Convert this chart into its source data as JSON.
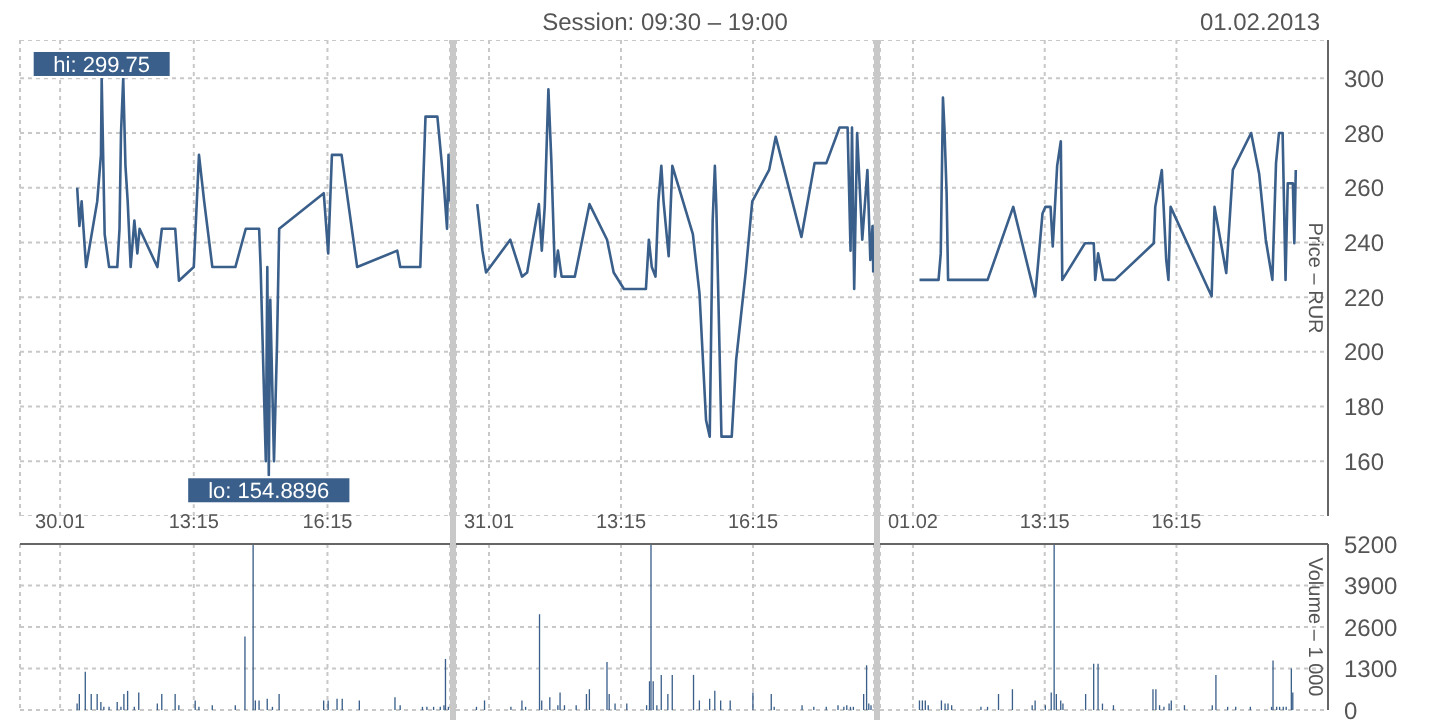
{
  "chart_data": [
    {
      "type": "line",
      "color": "#3a5f8a",
      "grid": true,
      "tick_labels": false,
      "annotations": [
        {
          "text": "hi: 299.75",
          "x": "2013-01-30T11:11",
          "y": 299.75
        },
        {
          "text": "lo: 154.8896",
          "x": "2013-01-30T14:56",
          "y": 154.8896
        }
      ],
      "x": [
        "2013-01-30T10:38",
        "2013-01-30T10:41",
        "2013-01-30T10:44",
        "2013-01-30T10:50",
        "2013-01-30T11:05",
        "2013-01-30T11:10",
        "2013-01-30T11:11",
        "2013-01-30T11:15",
        "2013-01-30T11:21",
        "2013-01-30T11:32",
        "2013-01-30T11:35",
        "2013-01-30T11:37",
        "2013-01-30T11:40",
        "2013-01-30T11:43",
        "2013-01-30T11:46",
        "2013-01-30T11:50",
        "2013-01-30T11:55",
        "2013-01-30T11:59",
        "2013-01-30T12:02",
        "2013-01-30T12:26",
        "2013-01-30T12:32",
        "2013-01-30T12:50",
        "2013-01-30T12:55",
        "2013-01-30T13:15",
        "2013-01-30T13:22",
        "2013-01-30T13:29",
        "2013-01-30T13:40",
        "2013-01-30T14:11",
        "2013-01-30T14:25",
        "2013-01-30T14:43",
        "2013-01-30T14:45",
        "2013-01-30T14:52",
        "2013-01-30T14:54",
        "2013-01-30T14:56",
        "2013-01-30T14:58",
        "2013-01-30T15:03",
        "2013-01-30T15:07",
        "2013-01-30T15:10",
        "2013-01-30T16:10",
        "2013-01-30T16:16",
        "2013-01-30T16:21",
        "2013-01-30T16:34",
        "2013-01-30T16:55",
        "2013-01-30T17:49",
        "2013-01-30T17:53",
        "2013-01-30T18:20",
        "2013-01-30T18:27",
        "2013-01-30T18:43",
        "2013-01-30T18:52",
        "2013-01-30T18:56",
        "2013-01-30T18:58",
        "2013-01-30T18:59"
      ],
      "values": [
        260,
        246,
        255,
        231,
        255,
        272,
        299.75,
        243,
        231,
        231,
        245,
        280,
        300,
        268,
        255,
        231,
        248,
        236,
        245,
        231,
        245,
        245,
        226,
        231,
        272,
        255,
        231,
        231,
        245,
        245,
        231,
        160,
        231,
        154.8896,
        219,
        160,
        202,
        245,
        258,
        236,
        272,
        272,
        231,
        237,
        231,
        231,
        286,
        286,
        260,
        245,
        272,
        255
      ],
      "xlim": [
        "2013-01-30T09:21",
        "2013-01-30T19:00"
      ],
      "xticks": [
        {
          "value": "2013-01-30T10:15",
          "label": null
        },
        {
          "value": "2013-01-30T13:15",
          "label": null
        },
        {
          "value": "2013-01-30T16:15",
          "label": null
        }
      ],
      "ylim": [
        140,
        314
      ],
      "yticks": [
        160,
        180,
        200,
        220,
        240,
        260,
        280,
        300
      ]
    },
    {
      "type": "line",
      "title": "Session: 09:30 – 19:00",
      "color": "#3a5f8a",
      "grid": true,
      "tick_labels": false,
      "x": [
        "2013-01-31T09:59",
        "2013-01-31T10:06",
        "2013-01-31T10:11",
        "2013-01-31T10:44",
        "2013-01-31T11:00",
        "2013-01-31T11:07",
        "2013-01-31T11:23",
        "2013-01-31T11:27",
        "2013-01-31T11:31",
        "2013-01-31T11:36",
        "2013-01-31T11:40",
        "2013-01-31T11:45",
        "2013-01-31T11:49",
        "2013-01-31T11:54",
        "2013-01-31T12:12",
        "2013-01-31T12:32",
        "2013-01-31T12:56",
        "2013-01-31T13:05",
        "2013-01-31T13:19",
        "2013-01-31T13:49",
        "2013-01-31T13:53",
        "2013-01-31T13:57",
        "2013-01-31T14:02",
        "2013-01-31T14:06",
        "2013-01-31T14:10",
        "2013-01-31T14:13",
        "2013-01-31T14:20",
        "2013-01-31T14:25",
        "2013-01-31T14:53",
        "2013-01-31T15:02",
        "2013-01-31T15:11",
        "2013-01-31T15:16",
        "2013-01-31T15:20",
        "2013-01-31T15:23",
        "2013-01-31T15:25",
        "2013-01-31T15:32",
        "2013-01-31T15:46",
        "2013-01-31T15:52",
        "2013-01-31T16:05",
        "2013-01-31T16:14",
        "2013-01-31T16:37",
        "2013-01-31T16:46",
        "2013-01-31T17:21",
        "2013-01-31T17:39",
        "2013-01-31T17:55",
        "2013-01-31T18:13",
        "2013-01-31T18:24",
        "2013-01-31T18:28",
        "2013-01-31T18:30",
        "2013-01-31T18:33",
        "2013-01-31T18:37",
        "2013-01-31T18:44",
        "2013-01-31T18:51",
        "2013-01-31T18:55",
        "2013-01-31T18:58",
        "2013-01-31T18:59"
      ],
      "values": [
        254,
        237,
        229,
        241,
        227.5,
        229,
        254,
        237,
        253,
        296,
        270,
        227.5,
        237,
        227.5,
        227.5,
        254,
        241,
        229,
        223,
        223,
        241,
        231,
        227.5,
        255,
        268,
        255,
        235,
        268,
        243,
        221.5,
        175,
        169,
        248,
        268,
        253,
        169,
        169,
        197,
        229,
        255,
        266.5,
        278.6,
        242,
        269,
        269,
        282,
        282,
        237,
        282,
        223,
        280,
        241,
        266.5,
        233.6,
        246,
        229
      ],
      "xlim": [
        "2013-01-31T09:30",
        "2013-01-31T19:00"
      ],
      "xticks": [
        {
          "value": "2013-01-31T10:15",
          "label": null
        },
        {
          "value": "2013-01-31T13:15",
          "label": null
        },
        {
          "value": "2013-01-31T16:15",
          "label": null
        }
      ],
      "ylim": [
        140,
        314
      ],
      "yticks": [
        160,
        180,
        200,
        220,
        240,
        260,
        280,
        300
      ]
    },
    {
      "type": "line",
      "ylabel": "Price – RUR",
      "color": "#3a5f8a",
      "grid": true,
      "tick_labels": "y",
      "annotations": [
        "01.02.2013"
      ],
      "x": [
        "2013-02-01T10:24",
        "2013-02-01T10:50",
        "2013-02-01T10:53",
        "2013-02-01T10:56",
        "2013-02-01T10:58",
        "2013-02-01T11:01",
        "2013-02-01T11:03",
        "2013-02-01T11:57",
        "2013-02-01T12:32",
        "2013-02-01T13:02",
        "2013-02-01T13:12",
        "2013-02-01T13:16",
        "2013-02-01T13:23",
        "2013-02-01T13:26",
        "2013-02-01T13:32",
        "2013-02-01T13:37",
        "2013-02-01T13:39",
        "2013-02-01T14:10",
        "2013-02-01T14:22",
        "2013-02-01T14:24",
        "2013-02-01T14:28",
        "2013-02-01T14:35",
        "2013-02-01T14:51",
        "2013-02-01T15:44",
        "2013-02-01T15:46",
        "2013-02-01T15:55",
        "2013-02-01T16:01",
        "2013-02-01T16:04",
        "2013-02-01T16:07",
        "2013-02-01T17:03",
        "2013-02-01T17:07",
        "2013-02-01T17:23",
        "2013-02-01T17:32",
        "2013-02-01T17:57",
        "2013-02-01T18:08",
        "2013-02-01T18:17",
        "2013-02-01T18:26",
        "2013-02-01T18:31",
        "2013-02-01T18:35",
        "2013-02-01T18:40",
        "2013-02-01T18:44",
        "2013-02-01T18:47",
        "2013-02-01T18:54",
        "2013-02-01T18:56",
        "2013-02-01T18:58"
      ],
      "values": [
        226.3,
        226.3,
        236,
        293,
        282,
        258,
        226.3,
        226.3,
        253,
        220.3,
        250.6,
        253,
        253,
        238.5,
        268,
        277,
        226.3,
        239.7,
        239.7,
        226.3,
        236,
        226.3,
        226.3,
        239.7,
        253,
        266.5,
        233.6,
        226.3,
        253,
        220.3,
        253,
        228.8,
        266.5,
        280,
        265,
        241,
        226.3,
        269,
        280,
        280,
        226.3,
        261.6,
        261.6,
        239.7,
        266.5
      ],
      "xlim": [
        "2013-02-01T09:30",
        "2013-02-01T19:42"
      ],
      "xticks": [
        {
          "value": "2013-02-01T10:15",
          "label": null
        },
        {
          "value": "2013-02-01T13:15",
          "label": null
        },
        {
          "value": "2013-02-01T16:15",
          "label": null
        }
      ],
      "ylim": [
        140,
        314
      ],
      "yticks": [
        160,
        180,
        200,
        220,
        240,
        260,
        280,
        300
      ]
    },
    {
      "type": "bar",
      "color": "#3a5f8a",
      "grid": true,
      "tick_labels": "x",
      "x": [
        "2013-01-30T10:38",
        "2013-01-30T10:41",
        "2013-01-30T10:49",
        "2013-01-30T10:57",
        "2013-01-30T11:05",
        "2013-01-30T11:10",
        "2013-01-30T11:14",
        "2013-01-30T11:21",
        "2013-01-30T11:32",
        "2013-01-30T11:37",
        "2013-01-30T11:41",
        "2013-01-30T11:46",
        "2013-01-30T11:55",
        "2013-01-30T12:01",
        "2013-01-30T12:26",
        "2013-01-30T12:32",
        "2013-01-30T12:50",
        "2013-01-30T12:55",
        "2013-01-30T13:17",
        "2013-01-30T13:22",
        "2013-01-30T13:40",
        "2013-01-30T14:11",
        "2013-01-30T14:24",
        "2013-01-30T14:35",
        "2013-01-30T14:38",
        "2013-01-30T14:43",
        "2013-01-30T14:54",
        "2013-01-30T15:01",
        "2013-01-30T15:10",
        "2013-01-30T16:10",
        "2013-01-30T16:16",
        "2013-01-30T16:28",
        "2013-01-30T16:35",
        "2013-01-30T16:58",
        "2013-01-30T17:46",
        "2013-01-30T17:53",
        "2013-01-30T18:23",
        "2013-01-30T18:29",
        "2013-01-30T18:38",
        "2013-01-30T18:47",
        "2013-01-30T18:52",
        "2013-01-30T18:54",
        "2013-01-30T18:58"
      ],
      "values": [
        200,
        500,
        1200,
        500,
        500,
        250,
        100,
        100,
        250,
        100,
        500,
        600,
        100,
        550,
        200,
        500,
        500,
        150,
        300,
        100,
        150,
        150,
        2300,
        5200,
        300,
        300,
        350,
        100,
        500,
        300,
        300,
        350,
        350,
        300,
        400,
        150,
        100,
        100,
        100,
        100,
        150,
        1600,
        100
      ],
      "xlim": [
        "2013-01-30T09:21",
        "2013-01-30T19:00"
      ],
      "xticks": [
        {
          "value": "2013-01-30T10:15",
          "label": "30.01"
        },
        {
          "value": "2013-01-30T13:15",
          "label": "13:15"
        },
        {
          "value": "2013-01-30T16:15",
          "label": "16:15"
        }
      ],
      "ylim": [
        0,
        5200
      ],
      "yticks": [
        0,
        1300,
        2600,
        3900,
        5200
      ]
    },
    {
      "type": "bar",
      "color": "#3a5f8a",
      "grid": true,
      "tick_labels": "x",
      "x": [
        "2013-01-31T09:58",
        "2013-01-31T10:09",
        "2013-01-31T10:45",
        "2013-01-31T11:00",
        "2013-01-31T11:05",
        "2013-01-31T11:24",
        "2013-01-31T11:27",
        "2013-01-31T11:38",
        "2013-01-31T11:49",
        "2013-01-31T11:52",
        "2013-01-31T11:58",
        "2013-01-31T12:14",
        "2013-01-31T12:28",
        "2013-01-31T12:32",
        "2013-01-31T12:56",
        "2013-01-31T12:59",
        "2013-01-31T13:07",
        "2013-01-31T13:23",
        "2013-01-31T13:50",
        "2013-01-31T13:54",
        "2013-01-31T13:56",
        "2013-01-31T13:59",
        "2013-01-31T14:04",
        "2013-01-31T14:10",
        "2013-01-31T14:19",
        "2013-01-31T14:25",
        "2013-01-31T14:54",
        "2013-01-31T15:02",
        "2013-01-31T15:16",
        "2013-01-31T15:23",
        "2013-01-31T15:31",
        "2013-01-31T15:44",
        "2013-01-31T16:15",
        "2013-01-31T16:40",
        "2013-01-31T16:44",
        "2013-01-31T17:22",
        "2013-01-31T17:38",
        "2013-01-31T17:55",
        "2013-01-31T18:11",
        "2013-01-31T18:19",
        "2013-01-31T18:23",
        "2013-01-31T18:28",
        "2013-01-31T18:32",
        "2013-01-31T18:46",
        "2013-01-31T18:50",
        "2013-01-31T18:53",
        "2013-01-31T18:56"
      ],
      "values": [
        100,
        300,
        100,
        300,
        100,
        3000,
        300,
        400,
        150,
        550,
        150,
        150,
        500,
        650,
        1500,
        500,
        200,
        200,
        150,
        900,
        5200,
        900,
        150,
        1100,
        500,
        1100,
        1100,
        300,
        350,
        600,
        300,
        300,
        550,
        500,
        100,
        150,
        100,
        100,
        150,
        100,
        150,
        100,
        100,
        500,
        1400,
        200,
        150
      ],
      "xlim": [
        "2013-01-31T09:30",
        "2013-01-31T19:00"
      ],
      "xticks": [
        {
          "value": "2013-01-31T10:15",
          "label": "31.01"
        },
        {
          "value": "2013-01-31T13:15",
          "label": "13:15"
        },
        {
          "value": "2013-01-31T16:15",
          "label": "16:15"
        }
      ],
      "ylim": [
        0,
        5200
      ],
      "yticks": [
        0,
        1300,
        2600,
        3900,
        5200
      ]
    },
    {
      "type": "bar",
      "ylabel": "Volume – 1 000",
      "color": "#3a5f8a",
      "grid": true,
      "x": [
        "2013-02-01T10:24",
        "2013-02-01T10:28",
        "2013-02-01T10:32",
        "2013-02-01T10:36",
        "2013-02-01T10:54",
        "2013-02-01T10:59",
        "2013-02-01T11:03",
        "2013-02-01T11:08",
        "2013-02-01T11:48",
        "2013-02-01T11:57",
        "2013-02-01T12:12",
        "2013-02-01T12:31",
        "2013-02-01T12:58",
        "2013-02-01T13:02",
        "2013-02-01T13:16",
        "2013-02-01T13:24",
        "2013-02-01T13:28",
        "2013-02-01T13:31",
        "2013-02-01T13:37",
        "2013-02-01T13:40",
        "2013-02-01T14:11",
        "2013-02-01T14:22",
        "2013-02-01T14:28",
        "2013-02-01T14:34",
        "2013-02-01T14:49",
        "2013-02-01T15:43",
        "2013-02-01T15:47",
        "2013-02-01T15:52",
        "2013-02-01T15:58",
        "2013-02-01T16:05",
        "2013-02-01T16:08",
        "2013-02-01T16:26",
        "2013-02-01T17:04",
        "2013-02-01T17:09",
        "2013-02-01T17:25",
        "2013-02-01T17:36",
        "2013-02-01T17:56",
        "2013-02-01T18:25",
        "2013-02-01T18:27",
        "2013-02-01T18:32",
        "2013-02-01T18:36",
        "2013-02-01T18:41",
        "2013-02-01T18:45",
        "2013-02-01T18:52",
        "2013-02-01T18:54"
      ],
      "values": [
        300,
        300,
        300,
        150,
        300,
        200,
        200,
        150,
        100,
        100,
        500,
        650,
        150,
        300,
        150,
        550,
        5200,
        500,
        300,
        200,
        500,
        1450,
        1450,
        200,
        150,
        650,
        650,
        150,
        100,
        200,
        300,
        150,
        150,
        1100,
        100,
        100,
        100,
        100,
        1550,
        100,
        100,
        100,
        100,
        1300,
        550
      ],
      "xlim": [
        "2013-02-01T09:30",
        "2013-02-01T19:42"
      ],
      "xticks": [
        {
          "value": "2013-02-01T10:15",
          "label": "01.02"
        },
        {
          "value": "2013-02-01T13:15",
          "label": "13:15"
        },
        {
          "value": "2013-02-01T16:15",
          "label": "16:15"
        }
      ],
      "ylim": [
        0,
        5200
      ],
      "yticks": [
        0,
        1300,
        2600,
        3900,
        5200
      ]
    }
  ]
}
